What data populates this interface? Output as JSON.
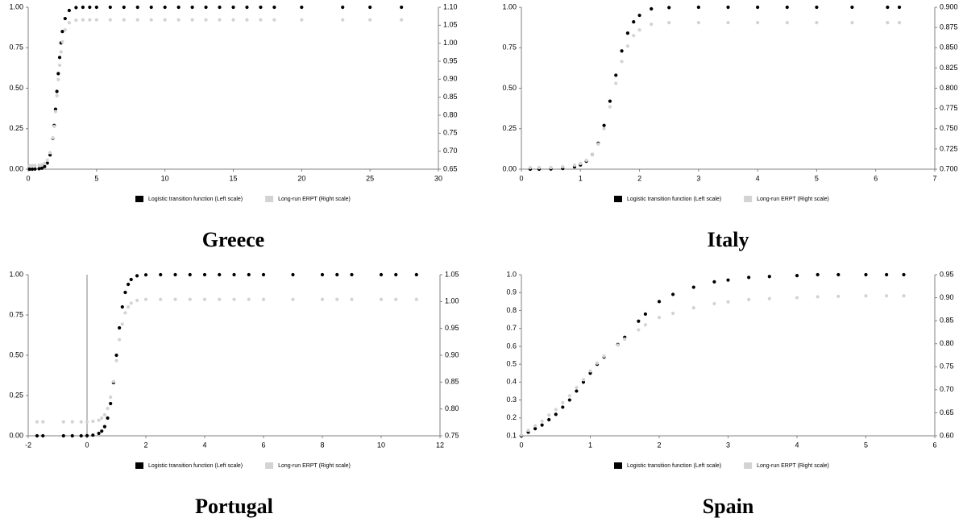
{
  "chart_data": [
    {
      "type": "scatter",
      "title": "Greece",
      "legend": "bottom",
      "grid": false,
      "x": [
        0.1,
        0.3,
        0.5,
        0.8,
        1.0,
        1.2,
        1.4,
        1.6,
        1.8,
        1.9,
        2.0,
        2.1,
        2.2,
        2.3,
        2.4,
        2.5,
        2.7,
        3.0,
        3.5,
        4,
        4.5,
        5,
        6,
        7,
        8,
        9,
        10,
        11,
        12,
        13,
        14,
        15,
        16,
        17,
        18,
        20,
        23,
        25,
        27.3
      ],
      "series": [
        {
          "name": "Logistic transition function (Left scale)",
          "color": "#000000",
          "axis": "y",
          "values": [
            0,
            0,
            0.001,
            0.003,
            0.006,
            0.016,
            0.038,
            0.088,
            0.19,
            0.27,
            0.37,
            0.48,
            0.59,
            0.69,
            0.78,
            0.85,
            0.93,
            0.98,
            0.998,
            1,
            1,
            1,
            1,
            1,
            1,
            1,
            1,
            1,
            1,
            1,
            1,
            1,
            1,
            1,
            1,
            1,
            1,
            1,
            1
          ]
        },
        {
          "name": "Long-run ERPT (Right scale)",
          "color": "#d3d3d3",
          "axis": "y2",
          "values": [
            0.66,
            0.66,
            0.66,
            0.661,
            0.662,
            0.666,
            0.675,
            0.696,
            0.737,
            0.769,
            0.81,
            0.854,
            0.899,
            0.939,
            0.976,
            1.004,
            1.037,
            1.057,
            1.064,
            1.065,
            1.065,
            1.065,
            1.065,
            1.065,
            1.065,
            1.065,
            1.065,
            1.065,
            1.065,
            1.065,
            1.065,
            1.065,
            1.065,
            1.065,
            1.065,
            1.065,
            1.065,
            1.065,
            1.065
          ]
        }
      ],
      "xlim": [
        0,
        30
      ],
      "xticks": [
        0,
        5,
        10,
        15,
        20,
        25,
        30
      ],
      "ylim": [
        0,
        1
      ],
      "yticks": [
        {
          "value": 0,
          "label": "0.00"
        },
        0.25,
        {
          "value": 0.5,
          "label": "0.50"
        },
        0.75,
        {
          "value": 1,
          "label": "1.00"
        }
      ],
      "y2lim": [
        0.65,
        1.1
      ],
      "y2ticks": [
        0.65,
        {
          "value": 0.7,
          "label": "0.70"
        },
        0.75,
        {
          "value": 0.8,
          "label": "0.80"
        },
        0.85,
        {
          "value": 0.9,
          "label": "0.90"
        },
        0.95,
        {
          "value": 1,
          "label": "1.00"
        },
        1.05,
        {
          "value": 1.1,
          "label": "1.10"
        }
      ]
    },
    {
      "type": "scatter",
      "title": "Italy",
      "legend": "bottom",
      "grid": false,
      "x": [
        0.15,
        0.3,
        0.5,
        0.7,
        0.9,
        1.0,
        1.1,
        1.2,
        1.3,
        1.4,
        1.5,
        1.6,
        1.7,
        1.8,
        1.9,
        2.0,
        2.2,
        2.5,
        3.0,
        3.5,
        4.0,
        4.5,
        5.0,
        5.6,
        6.2,
        6.4
      ],
      "series": [
        {
          "name": "Logistic transition function (Left scale)",
          "color": "#000000",
          "axis": "y",
          "values": [
            0,
            0,
            0.001,
            0.004,
            0.014,
            0.026,
            0.049,
            0.09,
            0.16,
            0.27,
            0.42,
            0.58,
            0.73,
            0.84,
            0.91,
            0.95,
            0.99,
            0.998,
            1,
            1,
            1,
            1,
            1,
            1,
            1,
            1
          ]
        },
        {
          "name": "Long-run ERPT (Right scale)",
          "color": "#d3d3d3",
          "axis": "y2",
          "values": [
            0.702,
            0.702,
            0.702,
            0.703,
            0.705,
            0.707,
            0.711,
            0.718,
            0.731,
            0.75,
            0.777,
            0.806,
            0.833,
            0.852,
            0.865,
            0.872,
            0.879,
            0.881,
            0.881,
            0.881,
            0.881,
            0.881,
            0.881,
            0.881,
            0.881,
            0.881
          ]
        }
      ],
      "xlim": [
        0,
        7
      ],
      "xticks": [
        0,
        1,
        2,
        3,
        4,
        5,
        6,
        7
      ],
      "ylim": [
        0,
        1
      ],
      "yticks": [
        {
          "value": 0,
          "label": "0.00"
        },
        0.25,
        {
          "value": 0.5,
          "label": "0.50"
        },
        0.75,
        {
          "value": 1,
          "label": "1.00"
        }
      ],
      "y2lim": [
        0.7,
        0.9
      ],
      "y2ticks": [
        {
          "value": 0.7,
          "label": "0.700"
        },
        0.725,
        {
          "value": 0.75,
          "label": "0.750"
        },
        0.775,
        {
          "value": 0.8,
          "label": "0.800"
        },
        0.825,
        {
          "value": 0.85,
          "label": "0.850"
        },
        0.875,
        {
          "value": 0.9,
          "label": "0.900"
        }
      ]
    },
    {
      "type": "scatter",
      "title": "Portugal",
      "legend": "bottom",
      "grid": false,
      "zeroline": true,
      "x": [
        -1.7,
        -1.5,
        -0.8,
        -0.5,
        -0.2,
        0,
        0.2,
        0.4,
        0.5,
        0.6,
        0.7,
        0.8,
        0.9,
        1.0,
        1.1,
        1.2,
        1.3,
        1.4,
        1.5,
        1.7,
        2,
        2.5,
        3,
        3.5,
        4,
        4.5,
        5,
        5.5,
        6,
        7,
        8,
        8.5,
        9,
        10,
        10.5,
        11.2
      ],
      "series": [
        {
          "name": "Logistic transition function (Left scale)",
          "color": "#000000",
          "axis": "y",
          "values": [
            0,
            0,
            0,
            0,
            0,
            0.001,
            0.004,
            0.015,
            0.029,
            0.057,
            0.11,
            0.2,
            0.33,
            0.5,
            0.67,
            0.8,
            0.89,
            0.94,
            0.97,
            0.993,
            0.999,
            1,
            1,
            1,
            1,
            1,
            1,
            1,
            1,
            1,
            1,
            1,
            1,
            1,
            1,
            1
          ]
        },
        {
          "name": "Long-run ERPT (Right scale)",
          "color": "#d3d3d3",
          "axis": "y2",
          "values": [
            0.776,
            0.776,
            0.776,
            0.776,
            0.776,
            0.776,
            0.777,
            0.779,
            0.783,
            0.789,
            0.801,
            0.822,
            0.851,
            0.89,
            0.929,
            0.958,
            0.979,
            0.99,
            0.997,
            1.002,
            1.004,
            1.004,
            1.004,
            1.004,
            1.004,
            1.004,
            1.004,
            1.004,
            1.004,
            1.004,
            1.004,
            1.004,
            1.004,
            1.004,
            1.004,
            1.004
          ]
        }
      ],
      "xlim": [
        -2,
        12
      ],
      "xticks": [
        -2,
        0,
        2,
        4,
        6,
        8,
        10,
        12
      ],
      "ylim": [
        0,
        1
      ],
      "yticks": [
        {
          "value": 0,
          "label": "0.00"
        },
        0.25,
        {
          "value": 0.5,
          "label": "0.50"
        },
        0.75,
        {
          "value": 1,
          "label": "1.00"
        }
      ],
      "y2lim": [
        0.75,
        1.05
      ],
      "y2ticks": [
        0.75,
        {
          "value": 0.8,
          "label": "0.80"
        },
        0.85,
        {
          "value": 0.9,
          "label": "0.90"
        },
        0.95,
        {
          "value": 1,
          "label": "1.00"
        },
        1.05
      ]
    },
    {
      "type": "scatter",
      "title": "Spain",
      "legend": "bottom",
      "grid": false,
      "x": [
        0,
        0.1,
        0.2,
        0.3,
        0.4,
        0.5,
        0.6,
        0.7,
        0.8,
        0.9,
        1.0,
        1.1,
        1.2,
        1.4,
        1.5,
        1.7,
        1.8,
        2.0,
        2.2,
        2.5,
        2.8,
        3.0,
        3.3,
        3.6,
        4.0,
        4.3,
        4.6,
        5.0,
        5.3,
        5.55
      ],
      "series": [
        {
          "name": "Logistic transition function (Left scale)",
          "color": "#000000",
          "axis": "y",
          "values": [
            0.1,
            0.12,
            0.14,
            0.16,
            0.19,
            0.22,
            0.26,
            0.3,
            0.35,
            0.4,
            0.45,
            0.5,
            0.54,
            0.61,
            0.65,
            0.74,
            0.78,
            0.85,
            0.89,
            0.93,
            0.96,
            0.97,
            0.985,
            0.99,
            0.995,
            1,
            1,
            1,
            1,
            1
          ]
        },
        {
          "name": "Long-run ERPT (Right scale)",
          "color": "#d3d3d3",
          "axis": "y2",
          "values": [
            0.602,
            0.612,
            0.622,
            0.632,
            0.645,
            0.657,
            0.672,
            0.687,
            0.705,
            0.722,
            0.741,
            0.758,
            0.773,
            0.797,
            0.81,
            0.83,
            0.841,
            0.857,
            0.866,
            0.878,
            0.887,
            0.891,
            0.896,
            0.898,
            0.9,
            0.902,
            0.903,
            0.904,
            0.904,
            0.904
          ]
        }
      ],
      "xlim": [
        0,
        6
      ],
      "xticks": [
        0,
        1,
        2,
        3,
        4,
        5,
        6
      ],
      "ylim": [
        0.1,
        1
      ],
      "yticks": [
        0.1,
        0.2,
        0.3,
        0.4,
        0.5,
        0.6,
        0.7,
        0.8,
        0.9,
        {
          "value": 1,
          "label": "1.0"
        }
      ],
      "y2lim": [
        0.6,
        0.95
      ],
      "y2ticks": [
        {
          "value": 0.6,
          "label": "0.60"
        },
        0.65,
        {
          "value": 0.7,
          "label": "0.70"
        },
        0.75,
        {
          "value": 0.8,
          "label": "0.80"
        },
        0.85,
        {
          "value": 0.9,
          "label": "0.90"
        },
        0.95
      ]
    }
  ]
}
